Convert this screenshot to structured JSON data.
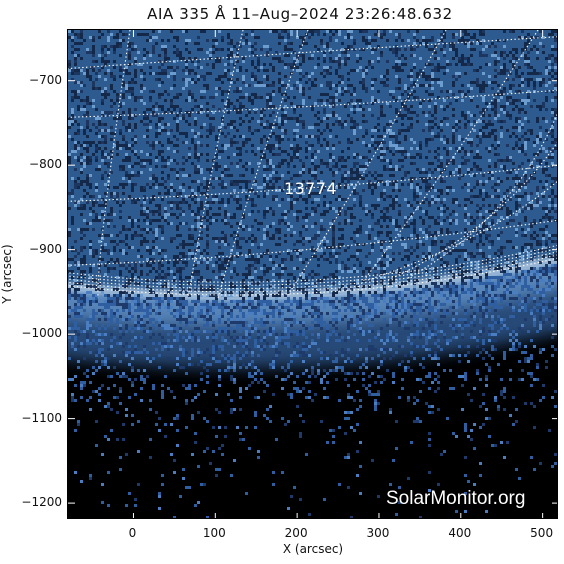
{
  "title": "AIA 335 Å 11–Aug–2024 23:26:48.632",
  "axes": {
    "xlabel": "X (arcsec)",
    "ylabel": "Y (arcsec)",
    "xlim": [
      -80,
      520
    ],
    "ylim": [
      -1220,
      -640
    ],
    "xticks": [
      0,
      100,
      200,
      300,
      400,
      500
    ],
    "yticks": [
      -700,
      -800,
      -900,
      -1000,
      -1100,
      -1200
    ],
    "xtick_labels": [
      "0",
      "100",
      "200",
      "300",
      "400",
      "500"
    ],
    "ytick_labels": [
      "−700",
      "−800",
      "−900",
      "−1000",
      "−1100",
      "−1200"
    ]
  },
  "region": {
    "number": "13774"
  },
  "watermark": "SolarMonitor.org",
  "colors": {
    "disk_bright": "#5b8ec4",
    "disk_dark": "#24456f",
    "limb_glow": "#c7dcf2",
    "space": "#000000",
    "grid": "#ffffff"
  }
}
